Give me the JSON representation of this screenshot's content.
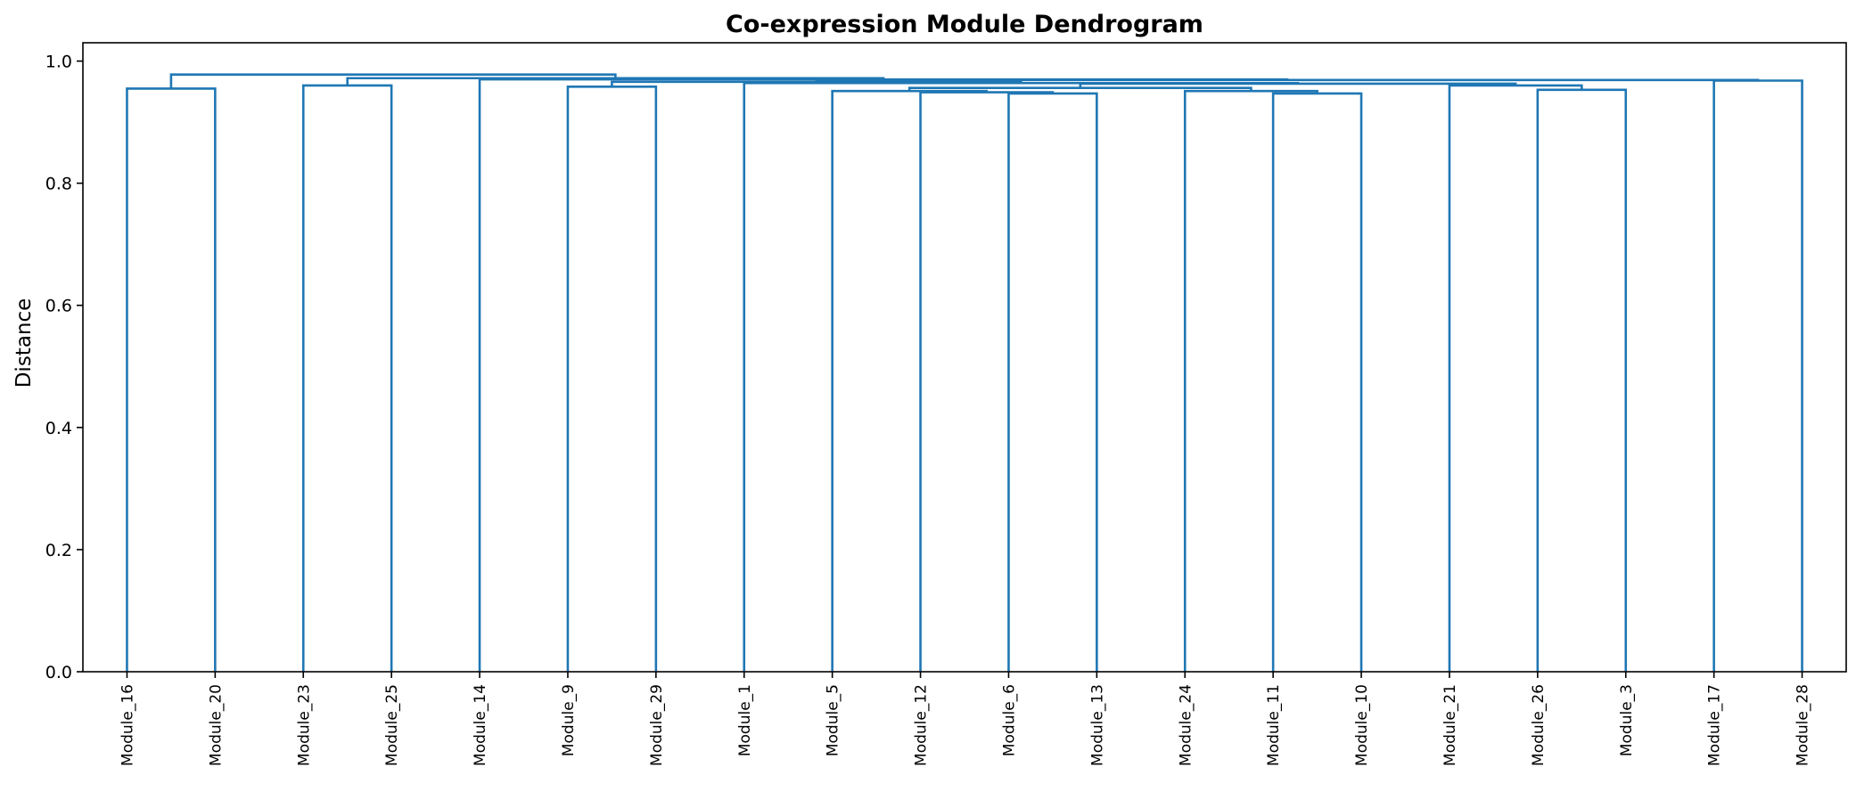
{
  "chart_data": {
    "type": "dendrogram",
    "title": "Co-expression Module Dendrogram",
    "xlabel": "",
    "ylabel": "Distance",
    "ylim": [
      0,
      1.03
    ],
    "yticks": [
      "0.0",
      "0.2",
      "0.4",
      "0.6",
      "0.8",
      "1.0"
    ],
    "ytick_values": [
      0.0,
      0.2,
      0.4,
      0.6,
      0.8,
      1.0
    ],
    "grid": false,
    "color": "#1f77b4",
    "leaves": [
      "Module_16",
      "Module_20",
      "Module_23",
      "Module_25",
      "Module_14",
      "Module_9",
      "Module_29",
      "Module_1",
      "Module_5",
      "Module_12",
      "Module_6",
      "Module_13",
      "Module_24",
      "Module_11",
      "Module_10",
      "Module_21",
      "Module_26",
      "Module_3",
      "Module_17",
      "Module_28"
    ],
    "merges": [
      {
        "left": "Module_16",
        "right": "Module_20",
        "height": 0.955
      },
      {
        "left": "Module_23",
        "right": "Module_25",
        "height": 0.96
      },
      {
        "left": "Module_9",
        "right": "Module_29",
        "height": 0.958
      },
      {
        "left": "Module_6",
        "right": "Module_13",
        "height": 0.947
      },
      {
        "left": "Module_12",
        "right": "[Module_6, Module_13]",
        "height": 0.949
      },
      {
        "left": "Module_5",
        "right": "[Module_12, Module_6, Module_13]",
        "height": 0.951
      },
      {
        "left": "Module_11",
        "right": "Module_10",
        "height": 0.947
      },
      {
        "left": "Module_24",
        "right": "[Module_11, Module_10]",
        "height": 0.951
      },
      {
        "left": "[Module_5 … Module_13]",
        "right": "[Module_24, Module_11, Module_10]",
        "height": 0.956
      },
      {
        "left": "Module_26",
        "right": "Module_3",
        "height": 0.953
      },
      {
        "left": "Module_21",
        "right": "[Module_26, Module_3]",
        "height": 0.96
      },
      {
        "left": "[Module_5 … Module_10]",
        "right": "[Module_21, Module_26, Module_3]",
        "height": 0.963
      },
      {
        "left": "Module_1",
        "right": "[Module_5 … Module_3]",
        "height": 0.964
      },
      {
        "left": "[Module_9, Module_29]",
        "right": "[Module_1 … Module_3]",
        "height": 0.966
      },
      {
        "left": "Module_17",
        "right": "Module_28",
        "height": 0.968
      },
      {
        "left": "[Module_9 … Module_3]",
        "right": "[Module_17, Module_28]",
        "height": 0.969
      },
      {
        "left": "Module_14",
        "right": "[Module_9 … Module_28]",
        "height": 0.97
      },
      {
        "left": "[Module_23, Module_25]",
        "right": "[Module_14 … Module_28]",
        "height": 0.972
      },
      {
        "left": "[Module_16, Module_20]",
        "right": "[Module_23 … Module_28]",
        "height": 0.978
      }
    ]
  }
}
